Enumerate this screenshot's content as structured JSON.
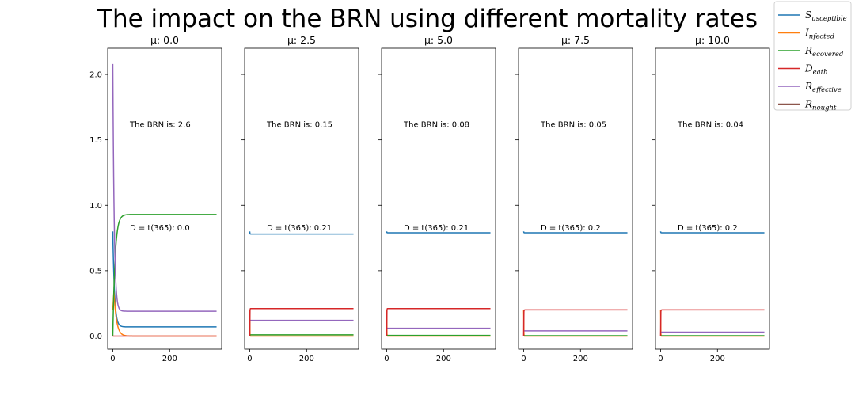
{
  "chart_data": {
    "type": "line",
    "title": "The impact on the BRN using different mortality rates",
    "ylim": [
      -0.1,
      2.2
    ],
    "xlim": [
      -18,
      383
    ],
    "yticks": [
      "0.0",
      "0.5",
      "1.0",
      "1.5",
      "2.0"
    ],
    "ytick_values": [
      0,
      0.5,
      1.0,
      1.5,
      2.0
    ],
    "xticks": [
      "0",
      "200"
    ],
    "xtick_values": [
      0,
      200
    ],
    "legend_position": "top-right",
    "colors": {
      "susceptible": "#1f77b4",
      "infected": "#ff7f0e",
      "recovered": "#2ca02c",
      "death": "#d62728",
      "effective": "#9467bd",
      "nought": "#8c564b"
    },
    "legend": [
      {
        "key": "susceptible",
        "main": "S",
        "sub": "usceptible"
      },
      {
        "key": "infected",
        "main": "I",
        "sub": "nfected"
      },
      {
        "key": "recovered",
        "main": "R",
        "sub": "ecovered"
      },
      {
        "key": "death",
        "main": "D",
        "sub": "eath"
      },
      {
        "key": "effective",
        "main": "R",
        "sub": "effective"
      },
      {
        "key": "nought",
        "main": "R",
        "sub": "nought"
      }
    ],
    "panels": [
      {
        "title": "μ: 0.0",
        "brn_text": "The BRN is: 2.6",
        "death_text": "D = t(365): 0.0",
        "end": {
          "susceptible": 0.07,
          "infected": 0.0,
          "recovered": 0.93,
          "death": 0.0,
          "effective": 0.19
        },
        "start": {
          "susceptible": 0.8,
          "infected": 0.2,
          "recovered": 0.0,
          "death": 0.0,
          "effective": 2.08
        }
      },
      {
        "title": "μ: 2.5",
        "brn_text": "The BRN is: 0.15",
        "death_text": "D = t(365): 0.21",
        "end": {
          "susceptible": 0.78,
          "infected": 0.0,
          "recovered": 0.01,
          "death": 0.21,
          "effective": 0.12
        },
        "start": {
          "susceptible": 0.8,
          "infected": 0.2,
          "recovered": 0.0,
          "death": 0.0,
          "effective": 0.12
        }
      },
      {
        "title": "μ: 5.0",
        "brn_text": "The BRN is: 0.08",
        "death_text": "D = t(365): 0.21",
        "end": {
          "susceptible": 0.79,
          "infected": 0.0,
          "recovered": 0.005,
          "death": 0.21,
          "effective": 0.06
        },
        "start": {
          "susceptible": 0.8,
          "infected": 0.2,
          "recovered": 0.0,
          "death": 0.0,
          "effective": 0.06
        }
      },
      {
        "title": "μ: 7.5",
        "brn_text": "The BRN is: 0.05",
        "death_text": "D = t(365): 0.2",
        "end": {
          "susceptible": 0.79,
          "infected": 0.0,
          "recovered": 0.003,
          "death": 0.2,
          "effective": 0.04
        },
        "start": {
          "susceptible": 0.8,
          "infected": 0.2,
          "recovered": 0.0,
          "death": 0.0,
          "effective": 0.04
        }
      },
      {
        "title": "μ: 10.0",
        "brn_text": "The BRN is: 0.04",
        "death_text": "D = t(365): 0.2",
        "end": {
          "susceptible": 0.79,
          "infected": 0.0,
          "recovered": 0.003,
          "death": 0.2,
          "effective": 0.03
        },
        "start": {
          "susceptible": 0.8,
          "infected": 0.2,
          "recovered": 0.0,
          "death": 0.0,
          "effective": 0.03
        }
      }
    ]
  }
}
